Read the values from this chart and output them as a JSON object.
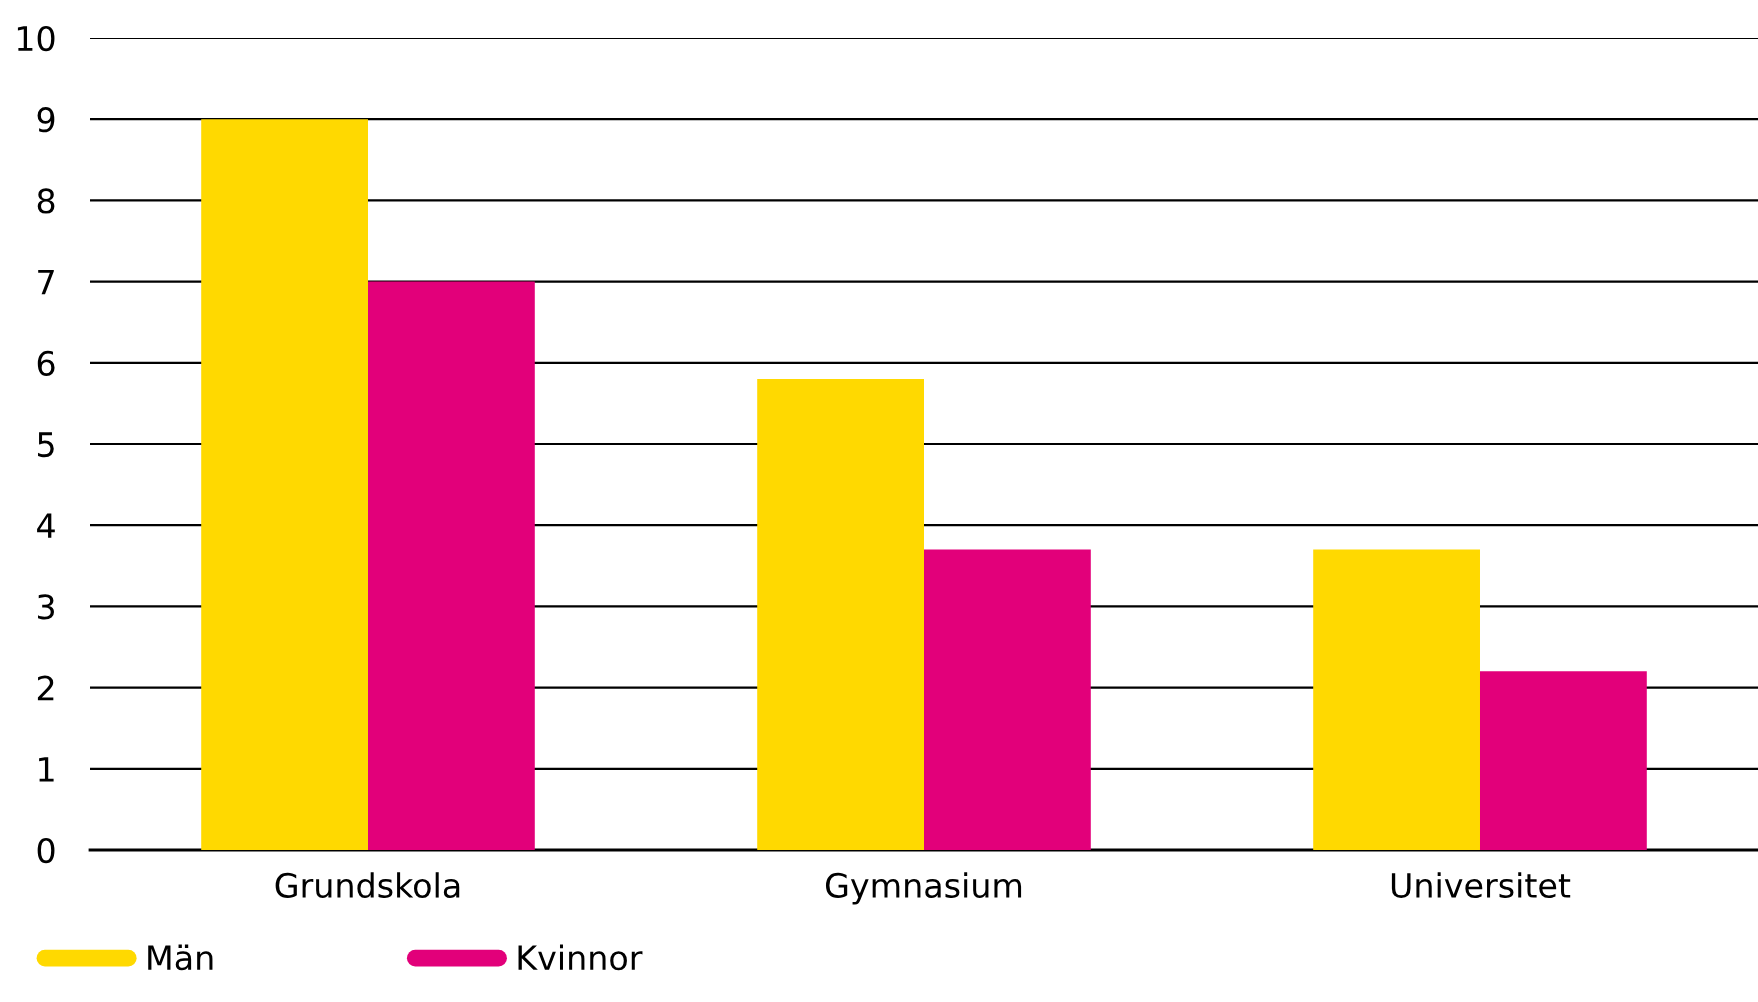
{
  "chart_data": {
    "type": "bar",
    "categories": [
      "Grundskola",
      "Gymnasium",
      "Universitet"
    ],
    "series": [
      {
        "name": "Män",
        "color": "#ffd900",
        "values": [
          9.0,
          5.8,
          3.7
        ]
      },
      {
        "name": "Kvinnor",
        "color": "#e2007a",
        "values": [
          7.0,
          3.7,
          2.2
        ]
      }
    ],
    "ylim": [
      0,
      10
    ],
    "yticks": [
      0,
      1,
      2,
      3,
      4,
      5,
      6,
      7,
      8,
      9,
      10
    ],
    "grid": "y",
    "legend": "bottom"
  }
}
